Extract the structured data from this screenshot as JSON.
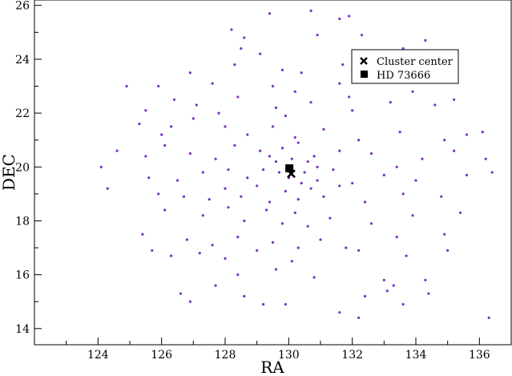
{
  "chart_data": {
    "type": "scatter",
    "title": "",
    "xlabel": "RA",
    "ylabel": "DEC",
    "xlim": [
      122,
      137
    ],
    "ylim": [
      13.4,
      26.2
    ],
    "xticks": [
      124,
      126,
      128,
      130,
      132,
      134,
      136
    ],
    "yticks": [
      14,
      16,
      18,
      20,
      22,
      24,
      26
    ],
    "grid": false,
    "legend_position": "top-right",
    "series": [
      {
        "name": "",
        "marker": "dot",
        "color": "#7b2fd0",
        "points": [
          [
            128.2,
            25.1
          ],
          [
            128.6,
            24.8
          ],
          [
            129.4,
            25.7
          ],
          [
            130.7,
            25.8
          ],
          [
            131.6,
            25.5
          ],
          [
            131.9,
            25.6
          ],
          [
            132.3,
            24.9
          ],
          [
            133.6,
            24.4
          ],
          [
            134.3,
            24.7
          ],
          [
            128.5,
            24.4
          ],
          [
            129.1,
            24.2
          ],
          [
            130.9,
            24.9
          ],
          [
            134.1,
            24.0
          ],
          [
            128.3,
            23.8
          ],
          [
            129.8,
            23.6
          ],
          [
            130.4,
            23.5
          ],
          [
            131.7,
            23.8
          ],
          [
            133.1,
            23.4
          ],
          [
            125.9,
            23.0
          ],
          [
            126.9,
            23.5
          ],
          [
            127.6,
            23.1
          ],
          [
            129.5,
            23.0
          ],
          [
            130.2,
            22.8
          ],
          [
            131.6,
            23.1
          ],
          [
            124.9,
            23.0
          ],
          [
            125.5,
            22.1
          ],
          [
            126.4,
            22.5
          ],
          [
            127.1,
            22.3
          ],
          [
            128.4,
            22.6
          ],
          [
            129.6,
            22.2
          ],
          [
            130.7,
            22.4
          ],
          [
            132.0,
            22.1
          ],
          [
            133.2,
            22.4
          ],
          [
            134.6,
            22.3
          ],
          [
            135.2,
            22.5
          ],
          [
            125.3,
            21.6
          ],
          [
            126.0,
            21.2
          ],
          [
            127.0,
            21.8
          ],
          [
            128.0,
            21.5
          ],
          [
            128.7,
            21.2
          ],
          [
            129.5,
            21.5
          ],
          [
            130.2,
            21.1
          ],
          [
            131.1,
            21.4
          ],
          [
            132.2,
            21.0
          ],
          [
            133.5,
            21.3
          ],
          [
            134.9,
            21.0
          ],
          [
            135.6,
            21.2
          ],
          [
            136.1,
            21.3
          ],
          [
            125.5,
            20.4
          ],
          [
            126.1,
            20.8
          ],
          [
            126.9,
            20.5
          ],
          [
            127.7,
            20.3
          ],
          [
            128.3,
            20.8
          ],
          [
            129.1,
            20.6
          ],
          [
            129.8,
            20.7
          ],
          [
            130.3,
            20.9
          ],
          [
            130.8,
            20.4
          ],
          [
            131.6,
            20.6
          ],
          [
            132.6,
            20.5
          ],
          [
            133.4,
            20.0
          ],
          [
            134.2,
            20.3
          ],
          [
            135.2,
            20.6
          ],
          [
            136.2,
            20.3
          ],
          [
            124.1,
            20.0
          ],
          [
            125.6,
            19.6
          ],
          [
            126.5,
            19.5
          ],
          [
            127.3,
            19.8
          ],
          [
            128.1,
            19.9
          ],
          [
            128.7,
            19.6
          ],
          [
            129.2,
            19.9
          ],
          [
            129.6,
            20.2
          ],
          [
            130.0,
            19.6
          ],
          [
            130.5,
            19.8
          ],
          [
            130.9,
            19.5
          ],
          [
            131.4,
            19.9
          ],
          [
            132.0,
            19.4
          ],
          [
            133.0,
            19.7
          ],
          [
            134.0,
            19.5
          ],
          [
            135.6,
            19.7
          ],
          [
            136.4,
            19.8
          ],
          [
            124.3,
            19.2
          ],
          [
            125.9,
            19.0
          ],
          [
            126.7,
            18.9
          ],
          [
            127.5,
            18.8
          ],
          [
            128.0,
            19.2
          ],
          [
            128.5,
            18.9
          ],
          [
            129.0,
            19.3
          ],
          [
            129.4,
            18.7
          ],
          [
            129.9,
            19.1
          ],
          [
            130.3,
            18.8
          ],
          [
            130.7,
            19.2
          ],
          [
            131.1,
            18.9
          ],
          [
            131.6,
            19.3
          ],
          [
            132.4,
            18.7
          ],
          [
            133.6,
            19.0
          ],
          [
            134.8,
            18.9
          ],
          [
            126.1,
            18.4
          ],
          [
            127.3,
            18.2
          ],
          [
            128.1,
            18.5
          ],
          [
            128.6,
            18.0
          ],
          [
            129.3,
            18.4
          ],
          [
            129.8,
            17.9
          ],
          [
            130.2,
            18.3
          ],
          [
            130.6,
            17.8
          ],
          [
            131.3,
            18.1
          ],
          [
            132.6,
            17.9
          ],
          [
            133.9,
            18.2
          ],
          [
            135.4,
            18.3
          ],
          [
            125.4,
            17.5
          ],
          [
            126.8,
            17.3
          ],
          [
            127.6,
            17.1
          ],
          [
            128.4,
            17.4
          ],
          [
            129.5,
            17.2
          ],
          [
            130.3,
            17.0
          ],
          [
            131.0,
            17.3
          ],
          [
            131.8,
            17.0
          ],
          [
            133.4,
            17.4
          ],
          [
            134.9,
            17.5
          ],
          [
            125.7,
            16.9
          ],
          [
            126.3,
            16.7
          ],
          [
            127.2,
            16.8
          ],
          [
            128.0,
            16.6
          ],
          [
            129.0,
            16.9
          ],
          [
            130.1,
            16.5
          ],
          [
            132.2,
            16.9
          ],
          [
            133.7,
            16.7
          ],
          [
            135.0,
            16.9
          ],
          [
            128.4,
            16.0
          ],
          [
            129.6,
            16.2
          ],
          [
            130.8,
            15.9
          ],
          [
            133.0,
            15.8
          ],
          [
            133.3,
            15.6
          ],
          [
            134.3,
            15.8
          ],
          [
            126.6,
            15.3
          ],
          [
            127.7,
            15.6
          ],
          [
            128.6,
            15.2
          ],
          [
            132.4,
            15.2
          ],
          [
            133.1,
            15.4
          ],
          [
            134.4,
            15.3
          ],
          [
            126.9,
            15.0
          ],
          [
            129.2,
            14.9
          ],
          [
            129.9,
            14.9
          ],
          [
            131.6,
            14.6
          ],
          [
            132.2,
            14.4
          ],
          [
            133.6,
            14.9
          ],
          [
            136.3,
            14.4
          ],
          [
            124.6,
            20.6
          ],
          [
            126.3,
            21.5
          ],
          [
            127.8,
            22.0
          ],
          [
            129.9,
            21.9
          ],
          [
            131.9,
            22.6
          ],
          [
            133.9,
            22.8
          ],
          [
            135.1,
            23.2
          ],
          [
            130.6,
            20.2
          ],
          [
            129.7,
            19.8
          ],
          [
            130.1,
            20.3
          ],
          [
            130.4,
            19.4
          ],
          [
            129.4,
            20.4
          ],
          [
            130.9,
            20.0
          ]
        ]
      }
    ],
    "markers": [
      {
        "name": "Cluster center",
        "symbol": "x",
        "x": 130.08,
        "y": 19.75
      },
      {
        "name": "HD 73666",
        "symbol": "square",
        "x": 130.02,
        "y": 19.95
      }
    ]
  }
}
